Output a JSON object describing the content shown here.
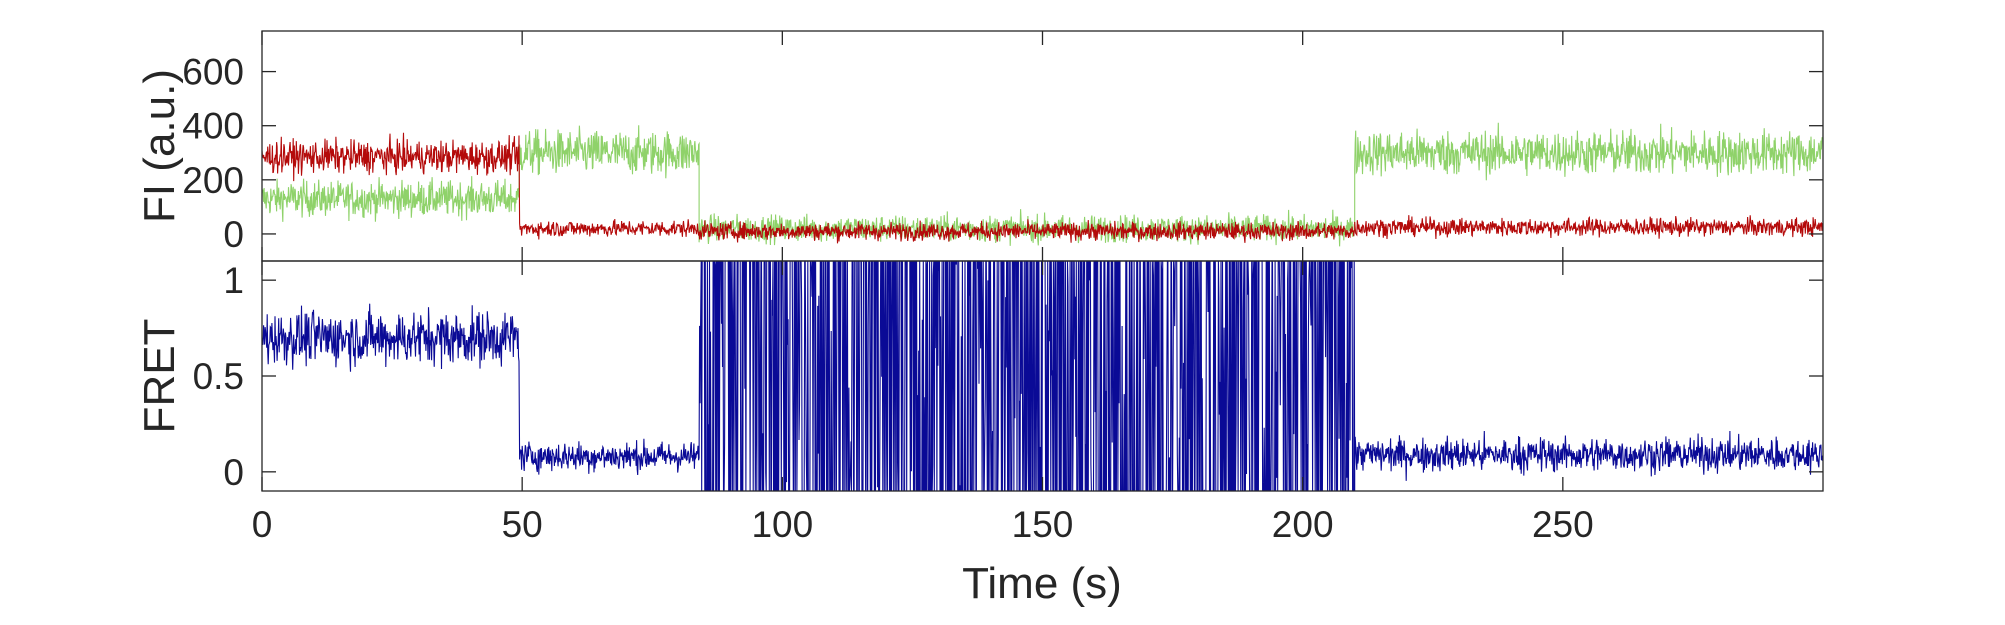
{
  "chart_data": [
    {
      "type": "line",
      "panel": "top",
      "ylabel": "FI (a.u.)",
      "xlim": [
        0,
        300
      ],
      "ylim": [
        -100,
        750
      ],
      "yticks": [
        0,
        200,
        400,
        600
      ],
      "yticklabels": [
        "0",
        "200",
        "400",
        "600"
      ],
      "grid": false,
      "colors": {
        "green": "#8fd26a",
        "red": "#b40a0a"
      },
      "series": [
        {
          "color_key": "green",
          "segments": [
            {
              "x_start": 0,
              "x_end": 49.5,
              "mean": 130,
              "noise": 60
            },
            {
              "x_start": 49.5,
              "x_end": 84,
              "mean": 300,
              "noise": 75
            },
            {
              "x_start": 84,
              "x_end": 210,
              "mean": 20,
              "noise": 45
            },
            {
              "x_start": 210,
              "x_end": 300,
              "mean": 300,
              "noise": 75
            }
          ]
        },
        {
          "color_key": "red",
          "segments": [
            {
              "x_start": 0,
              "x_end": 49.5,
              "mean": 285,
              "noise": 55
            },
            {
              "x_start": 49.5,
              "x_end": 84,
              "mean": 20,
              "noise": 28
            },
            {
              "x_start": 84,
              "x_end": 210,
              "mean": 10,
              "noise": 30
            },
            {
              "x_start": 210,
              "x_end": 300,
              "mean": 25,
              "noise": 30
            }
          ]
        }
      ]
    },
    {
      "type": "line",
      "panel": "bottom",
      "xlabel": "Time (s)",
      "ylabel": "FRET",
      "xlim": [
        0,
        300
      ],
      "ylim": [
        -0.1,
        1.1
      ],
      "xticks": [
        0,
        50,
        100,
        150,
        200,
        250
      ],
      "xticklabels": [
        "0",
        "50",
        "100",
        "150",
        "200",
        "250"
      ],
      "yticks": [
        0,
        0.5,
        1
      ],
      "yticklabels": [
        "0",
        "0.5",
        "1"
      ],
      "grid": false,
      "colors": {
        "blue": "#0a0a96"
      },
      "series": [
        {
          "color_key": "blue",
          "segments": [
            {
              "x_start": 0,
              "x_end": 49.5,
              "mean": 0.7,
              "noise": 0.13,
              "type": "noise"
            },
            {
              "x_start": 49.5,
              "x_end": 84,
              "mean": 0.08,
              "noise": 0.07,
              "type": "noise"
            },
            {
              "x_start": 84,
              "x_end": 210,
              "low": -0.1,
              "high": 1.1,
              "type": "saturated"
            },
            {
              "x_start": 210,
              "x_end": 300,
              "mean": 0.09,
              "noise": 0.08,
              "type": "noise"
            }
          ]
        }
      ]
    }
  ]
}
